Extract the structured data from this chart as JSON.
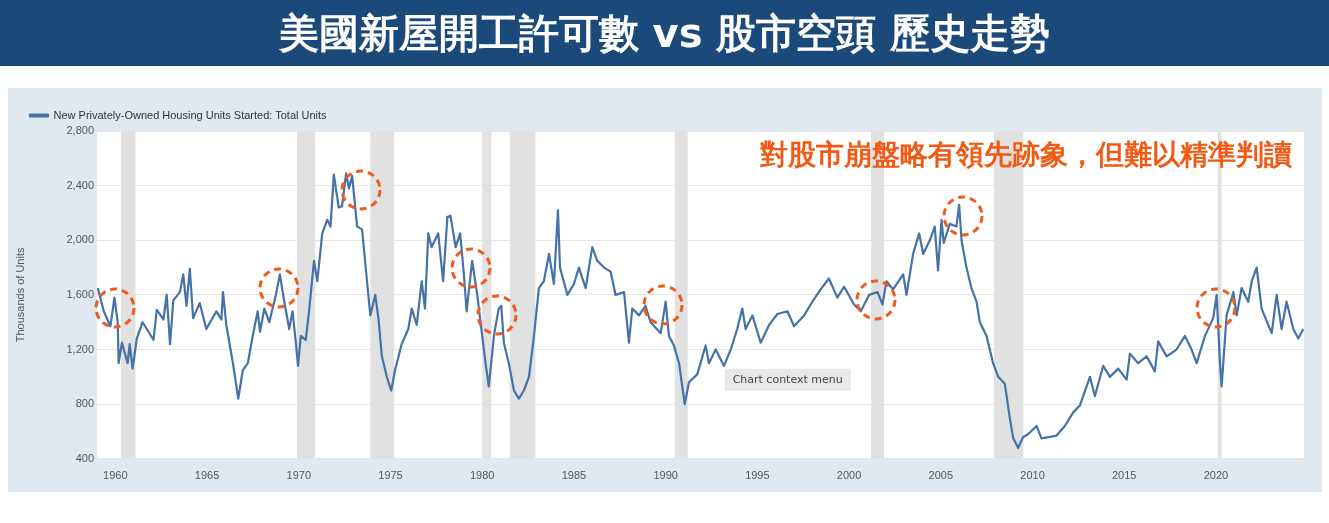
{
  "chart_data": {
    "type": "line",
    "title": "美國新屋開工許可數 vs 股市空頭 歷史走勢",
    "ylabel": "Thousands of Units",
    "annotations": [
      "對股市崩盤略有領先跡象，但難以精準判讀",
      "Chart context menu"
    ],
    "xlim": [
      1959,
      2024.8
    ],
    "xticks": [
      1960,
      1965,
      1970,
      1975,
      1980,
      1985,
      1990,
      1995,
      2000,
      2005,
      2010,
      2015,
      2020
    ],
    "ylim": [
      400,
      2800
    ],
    "yticks": [
      400,
      800,
      {
        "value": 1200,
        "label": "1,200"
      },
      {
        "value": 1600,
        "label": "1,600"
      },
      {
        "value": 2000,
        "label": "2,000"
      },
      {
        "value": 2400,
        "label": "2,400"
      },
      {
        "value": 2800,
        "label": "2,800"
      }
    ],
    "grid": "y",
    "legend": "top left",
    "marker": "none",
    "line_style": "solid",
    "bands": [
      {
        "axis": "x",
        "from": 1960.3,
        "to": 1961.1,
        "color": "#e1e1e1"
      },
      {
        "axis": "x",
        "from": 1969.9,
        "to": 1970.9,
        "color": "#e1e1e1"
      },
      {
        "axis": "x",
        "from": 1973.9,
        "to": 1975.2,
        "color": "#e1e1e1"
      },
      {
        "axis": "x",
        "from": 1980.0,
        "to": 1980.5,
        "color": "#e1e1e1"
      },
      {
        "axis": "x",
        "from": 1981.5,
        "to": 1982.9,
        "color": "#e1e1e1"
      },
      {
        "axis": "x",
        "from": 1990.5,
        "to": 1991.2,
        "color": "#e1e1e1"
      },
      {
        "axis": "x",
        "from": 2001.2,
        "to": 2001.9,
        "color": "#e1e1e1"
      },
      {
        "axis": "x",
        "from": 2007.9,
        "to": 2009.5,
        "color": "#e1e1e1"
      },
      {
        "axis": "x",
        "from": 2020.1,
        "to": 2020.3,
        "color": "#e1e1e1"
      }
    ],
    "series": [
      {
        "name": "New Privately-Owned Housing Units Started: Total Units",
        "color": "#4572a7",
        "x": [
          1959.04,
          1959.37,
          1959.73,
          1959.95,
          1960.13,
          1960.18,
          1960.36,
          1960.67,
          1960.78,
          1960.94,
          1961.17,
          1961.48,
          1961.81,
          1962.08,
          1962.26,
          1962.62,
          1962.8,
          1962.98,
          1963.16,
          1963.52,
          1963.7,
          1963.88,
          1964.06,
          1964.24,
          1964.6,
          1964.96,
          1965.51,
          1965.78,
          1965.87,
          1966.05,
          1966.41,
          1966.7,
          1966.95,
          1967.22,
          1967.49,
          1967.76,
          1967.89,
          1968.12,
          1968.39,
          1968.75,
          1968.97,
          1969.21,
          1969.48,
          1969.66,
          1969.84,
          1969.96,
          1970.11,
          1970.38,
          1970.56,
          1970.83,
          1971.01,
          1971.28,
          1971.55,
          1971.73,
          1971.91,
          1972.18,
          1972.36,
          1972.58,
          1972.73,
          1972.91,
          1973.18,
          1973.45,
          1973.72,
          1973.9,
          1974.17,
          1974.35,
          1974.53,
          1974.8,
          1975.04,
          1975.25,
          1975.61,
          1975.97,
          1976.16,
          1976.43,
          1976.7,
          1976.88,
          1977.06,
          1977.24,
          1977.6,
          1977.87,
          1978.1,
          1978.27,
          1978.55,
          1978.8,
          1979.0,
          1979.15,
          1979.45,
          1979.73,
          1980.18,
          1980.36,
          1980.64,
          1980.9,
          1981.04,
          1981.18,
          1981.45,
          1981.73,
          1982.0,
          1982.27,
          1982.55,
          1982.82,
          1983.09,
          1983.36,
          1983.64,
          1983.91,
          1984.13,
          1984.24,
          1984.64,
          1985.0,
          1985.27,
          1985.64,
          1986.0,
          1986.27,
          1986.64,
          1987.0,
          1987.27,
          1987.73,
          1988.0,
          1988.18,
          1988.55,
          1988.9,
          1989.18,
          1989.73,
          1990.0,
          1990.18,
          1990.45,
          1990.73,
          1991.04,
          1991.27,
          1991.73,
          1992.18,
          1992.36,
          1992.73,
          1993.18,
          1993.55,
          1993.9,
          1994.18,
          1994.36,
          1994.73,
          1995.18,
          1995.64,
          1996.09,
          1996.64,
          1997.0,
          1997.55,
          1998.0,
          1998.45,
          1998.9,
          1999.36,
          1999.73,
          2000.27,
          2000.64,
          2001.09,
          2001.55,
          2001.82,
          2002.04,
          2002.4,
          2002.95,
          2003.13,
          2003.49,
          2003.82,
          2004.04,
          2004.4,
          2004.67,
          2004.85,
          2005.04,
          2005.16,
          2005.49,
          2005.85,
          2006.0,
          2006.13,
          2006.4,
          2006.67,
          2006.95,
          2007.13,
          2007.49,
          2007.85,
          2008.13,
          2008.49,
          2008.76,
          2008.95,
          2009.22,
          2009.49,
          2009.76,
          2010.22,
          2010.49,
          2010.95,
          2011.31,
          2011.76,
          2012.22,
          2012.58,
          2013.13,
          2013.4,
          2013.85,
          2014.22,
          2014.67,
          2015.13,
          2015.31,
          2015.76,
          2016.22,
          2016.67,
          2016.85,
          2017.31,
          2017.85,
          2018.31,
          2018.67,
          2018.95,
          2019.4,
          2019.85,
          2020.04,
          2020.22,
          2020.31,
          2020.58,
          2020.95,
          2021.13,
          2021.4,
          2021.76,
          2021.95,
          2022.22,
          2022.49,
          2022.85,
          2023.04,
          2023.31,
          2023.58,
          2023.85,
          2024.22,
          2024.49,
          2024.76
        ],
        "values": [
          1650,
          1480,
          1370,
          1580,
          1400,
          1100,
          1250,
          1100,
          1240,
          1060,
          1280,
          1400,
          1330,
          1270,
          1490,
          1420,
          1600,
          1240,
          1560,
          1620,
          1750,
          1520,
          1790,
          1430,
          1540,
          1350,
          1480,
          1420,
          1620,
          1380,
          1100,
          840,
          1050,
          1100,
          1300,
          1480,
          1330,
          1500,
          1400,
          1600,
          1750,
          1550,
          1350,
          1480,
          1250,
          1080,
          1300,
          1270,
          1480,
          1850,
          1700,
          2050,
          2150,
          2100,
          2480,
          2240,
          2250,
          2490,
          2380,
          2470,
          2100,
          2080,
          1700,
          1450,
          1600,
          1420,
          1150,
          1000,
          900,
          1050,
          1240,
          1350,
          1500,
          1380,
          1700,
          1500,
          2050,
          1950,
          2050,
          1700,
          2170,
          2180,
          1950,
          2050,
          1750,
          1480,
          1850,
          1600,
          1100,
          930,
          1300,
          1500,
          1520,
          1250,
          1100,
          900,
          840,
          900,
          1000,
          1300,
          1650,
          1700,
          1900,
          1680,
          2220,
          1800,
          1600,
          1680,
          1800,
          1650,
          1950,
          1850,
          1800,
          1770,
          1600,
          1620,
          1250,
          1500,
          1450,
          1520,
          1400,
          1320,
          1550,
          1300,
          1230,
          1100,
          800,
          960,
          1020,
          1230,
          1100,
          1200,
          1080,
          1200,
          1350,
          1500,
          1350,
          1450,
          1250,
          1380,
          1460,
          1480,
          1370,
          1450,
          1550,
          1640,
          1720,
          1580,
          1660,
          1530,
          1480,
          1600,
          1620,
          1530,
          1700,
          1640,
          1750,
          1600,
          1900,
          2050,
          1900,
          2000,
          2100,
          1780,
          2150,
          1980,
          2120,
          2100,
          2260,
          2000,
          1800,
          1650,
          1550,
          1400,
          1300,
          1100,
          1000,
          950,
          700,
          550,
          480,
          560,
          580,
          640,
          550,
          560,
          570,
          640,
          740,
          790,
          1000,
          860,
          1080,
          1000,
          1060,
          980,
          1170,
          1100,
          1150,
          1040,
          1260,
          1150,
          1200,
          1300,
          1200,
          1100,
          1300,
          1430,
          1600,
          1100,
          930,
          1450,
          1620,
          1450,
          1650,
          1550,
          1700,
          1800,
          1500,
          1380,
          1320,
          1600,
          1350,
          1550,
          1350,
          1280,
          1350
        ]
      }
    ]
  }
}
